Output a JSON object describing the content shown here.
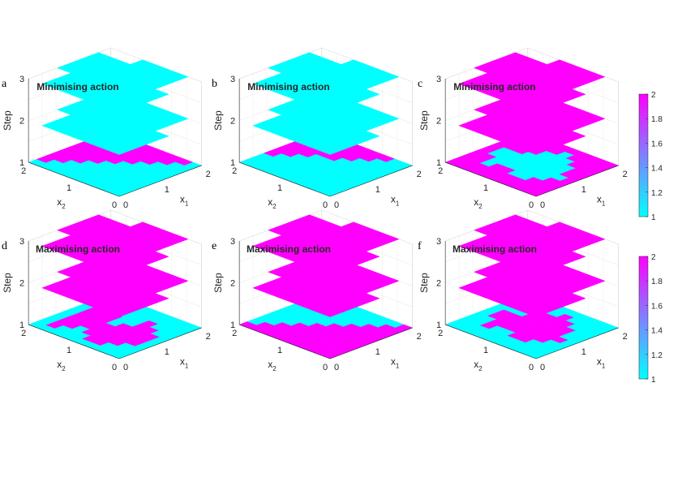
{
  "figure": {
    "colors": {
      "low": "#00ffff",
      "high": "#ff00ff",
      "mid": "#8080ff"
    },
    "colorbars": [
      {
        "id": "top",
        "ticks": [
          "2",
          "1.8",
          "1.6",
          "1.4",
          "1.2",
          "1"
        ],
        "range": [
          1,
          2
        ]
      },
      {
        "id": "bottom",
        "ticks": [
          "2",
          "1.8",
          "1.6",
          "1.4",
          "1.2",
          "1"
        ],
        "range": [
          1,
          2
        ]
      }
    ]
  },
  "chart_data": [
    {
      "panel": "a",
      "title": "Minimising action",
      "type": "heatmap",
      "xlabel": "x1",
      "ylabel": "x2",
      "zlabel": "Step",
      "x_ticks": [
        "0",
        "1",
        "2"
      ],
      "y_ticks": [
        "0",
        "1",
        "2"
      ],
      "z_ticks": [
        "1",
        "2",
        "3"
      ],
      "xlim": [
        0,
        2
      ],
      "ylim": [
        0,
        2
      ],
      "zlim": [
        1,
        3
      ],
      "clim": [
        1,
        2
      ],
      "layers": [
        {
          "step": 1,
          "grid": [
            "1111111111",
            "1111111112",
            "1111111122",
            "1111111222",
            "1111112222",
            "1111122222",
            "1111222222",
            "1112222222",
            "1122222222",
            "1222222222"
          ]
        },
        {
          "step": 2,
          "uniform": 1
        },
        {
          "step": 3,
          "uniform": 1
        }
      ]
    },
    {
      "panel": "b",
      "title": "Minimising action",
      "type": "heatmap",
      "xlabel": "x1",
      "ylabel": "x2",
      "zlabel": "Step",
      "x_ticks": [
        "0",
        "1",
        "2"
      ],
      "y_ticks": [
        "0",
        "1",
        "2"
      ],
      "z_ticks": [
        "1",
        "2",
        "3"
      ],
      "xlim": [
        0,
        2
      ],
      "ylim": [
        0,
        2
      ],
      "zlim": [
        1,
        3
      ],
      "clim": [
        1,
        2
      ],
      "layers": [
        {
          "step": 1,
          "grid": [
            "1111111111",
            "1111111111",
            "1111111112",
            "1111111122",
            "1111111222",
            "1111112222",
            "1111112222",
            "1111122222",
            "1111222222",
            "1112222222"
          ]
        },
        {
          "step": 2,
          "uniform": 1
        },
        {
          "step": 3,
          "uniform": 1
        }
      ]
    },
    {
      "panel": "c",
      "title": "Minimising action",
      "type": "heatmap",
      "xlabel": "x1",
      "ylabel": "x2",
      "zlabel": "Step",
      "x_ticks": [
        "0",
        "1",
        "2"
      ],
      "y_ticks": [
        "0",
        "1",
        "2"
      ],
      "z_ticks": [
        "1",
        "2",
        "3"
      ],
      "xlim": [
        0,
        2
      ],
      "ylim": [
        0,
        2
      ],
      "zlim": [
        1,
        3
      ],
      "clim": [
        1,
        2
      ],
      "layers": [
        {
          "step": 1,
          "grid": [
            "2222222222",
            "2222122222",
            "2221111222",
            "2211111122",
            "2211111112",
            "2221111122",
            "2221111122",
            "2211112222",
            "2222112222",
            "2222222222"
          ]
        },
        {
          "step": 2,
          "uniform": 2
        },
        {
          "step": 3,
          "uniform": 2
        }
      ]
    },
    {
      "panel": "d",
      "title": "Maximising action",
      "type": "heatmap",
      "xlabel": "x1",
      "ylabel": "x2",
      "zlabel": "Step",
      "x_ticks": [
        "0",
        "1",
        "2"
      ],
      "y_ticks": [
        "0",
        "1",
        "2"
      ],
      "z_ticks": [
        "1",
        "2",
        "3"
      ],
      "xlim": [
        0,
        2
      ],
      "ylim": [
        0,
        2
      ],
      "zlim": [
        1,
        3
      ],
      "clim": [
        1,
        2
      ],
      "layers": [
        {
          "step": 1,
          "grid": [
            "1111111111",
            "1112221111",
            "1122222111",
            "1222222211",
            "1222221111",
            "1122211111",
            "1112222111",
            "1122222211",
            "1222222221",
            "1111111111"
          ]
        },
        {
          "step": 2,
          "uniform": 2
        },
        {
          "step": 3,
          "uniform": 2
        }
      ]
    },
    {
      "panel": "e",
      "title": "Maximising action",
      "type": "heatmap",
      "xlabel": "x1",
      "ylabel": "x2",
      "zlabel": "Step",
      "x_ticks": [
        "0",
        "1",
        "2"
      ],
      "y_ticks": [
        "0",
        "1",
        "2"
      ],
      "z_ticks": [
        "1",
        "2",
        "3"
      ],
      "xlim": [
        0,
        2
      ],
      "ylim": [
        0,
        2
      ],
      "zlim": [
        1,
        3
      ],
      "clim": [
        1,
        2
      ],
      "layers": [
        {
          "step": 1,
          "grid": [
            "2222222222",
            "2222222221",
            "2222222211",
            "2222222111",
            "2222221111",
            "2222211111",
            "2222111111",
            "2221111111",
            "2211111111",
            "2111111111"
          ]
        },
        {
          "step": 2,
          "uniform": 2
        },
        {
          "step": 3,
          "uniform": 2
        }
      ]
    },
    {
      "panel": "f",
      "title": "Maximising action",
      "type": "heatmap",
      "xlabel": "x1",
      "ylabel": "x2",
      "zlabel": "Step",
      "x_ticks": [
        "0",
        "1",
        "2"
      ],
      "y_ticks": [
        "0",
        "1",
        "2"
      ],
      "z_ticks": [
        "1",
        "2",
        "3"
      ],
      "xlim": [
        0,
        2
      ],
      "ylim": [
        0,
        2
      ],
      "zlim": [
        1,
        3
      ],
      "clim": [
        1,
        2
      ],
      "layers": [
        {
          "step": 1,
          "grid": [
            "1111111111",
            "1111211111",
            "1112222111",
            "1122222211",
            "1122222221",
            "1112222211",
            "1112222211",
            "1122221111",
            "1111221111",
            "1111111111"
          ]
        },
        {
          "step": 2,
          "uniform": 2
        },
        {
          "step": 3,
          "uniform": 2
        }
      ]
    }
  ]
}
